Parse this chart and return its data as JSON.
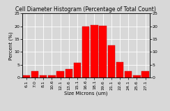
{
  "title": "Cell Diameter Histogram (Percentage of Total Count)",
  "xlabel": "Size Microns (um)",
  "ylabel": "Percent (%)",
  "categories": [
    "6.1",
    "7.0",
    "8.1",
    "10.6",
    "12.1",
    "13.6",
    "15.1",
    "16.6",
    "18.1",
    "19.6",
    "21.1",
    "22.6",
    "24.1",
    "25.6",
    "27.1"
  ],
  "values": [
    1.0,
    2.5,
    1.0,
    0.8,
    2.5,
    3.2,
    5.8,
    20.0,
    20.5,
    20.2,
    12.5,
    6.0,
    2.5,
    1.0,
    2.5
  ],
  "bar_color": "#ff0000",
  "bar_edge_color": "#bb0000",
  "ylim": [
    0,
    25
  ],
  "yticks": [
    0,
    5,
    10,
    15,
    20,
    25
  ],
  "background_color": "#d8d8d8",
  "grid_color": "#ffffff",
  "title_fontsize": 5.5,
  "axis_fontsize": 5.0,
  "tick_fontsize": 4.5
}
